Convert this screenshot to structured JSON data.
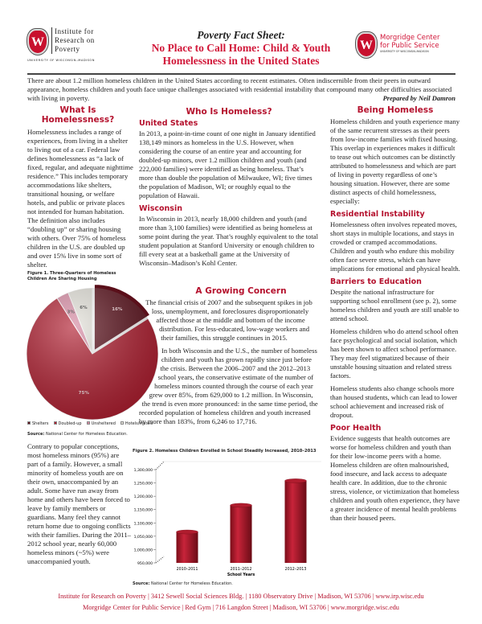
{
  "header": {
    "irp_logo": {
      "line1": "Institute for",
      "line2": "Research on",
      "line3": "Poverty",
      "sub": "University of Wisconsin–Madison"
    },
    "kicker": "Poverty Fact Sheet:",
    "title_line1": "No Place to Call Home: Child & Youth",
    "title_line2": "Homelessness in the United States",
    "morgridge_logo": {
      "line1": "Morgridge Center",
      "line2": "for Public Service",
      "sub": "University of Wisconsin–Madison"
    }
  },
  "intro": "There are about 1.2 million homeless children in the United States according to recent estimates. Often indiscernible from their peers in outward appearance, homeless children and youth face unique challenges associated with residential instability that compound many other difficulties associated with living in poverty.",
  "byline": "Prepared by Neil Damron",
  "left": {
    "heading": "What Is Homelessness?",
    "p1": "Homelessness includes a range of experiences, from living in a shelter to living out of a car. Federal law defines homelessness as “a lack of fixed, regular, and adequate nighttime residence.” This includes temporary accommodations like shelters, transitional housing, or welfare hotels, and public or private places not intended for human habitation. The definition also includes “doubling up” or sharing housing with others. Over 75% of homeless children in the U.S. are doubled up and over 15% live in some sort of shelter.",
    "fig1_caption": "Figure 1. Three-Quarters of Homeless Children Are Sharing Housing",
    "fig1_source_label": "Source:",
    "fig1_source": "National Center for Homeless Education.",
    "p2": "Contrary to popular conceptions, most homeless minors (95%) are part of a family. However, a small minority of homeless youth are on their own, unaccompanied by an adult. Some have run away from home and others have been forced to leave by family members or guardians. Many feel they cannot return home due to ongoing conflicts with their families. During the 2011–2012 school year, nearly 60,000 homeless minors (~5%) were unaccompanied youth."
  },
  "middle": {
    "heading": "Who Is Homeless?",
    "us_heading": "United States",
    "us_text": "In 2013, a point-in-time count of one night in January identified 138,149 minors as homeless in the U.S. However, when considering the course of an entire year and accounting for doubled-up minors, over 1.2 million children and youth (and 222,000 families) were identified as being homeless. That’s more than double the population of Milwaukee, WI; five times the population of Madison, WI; or roughly equal to the population of Hawaii.",
    "wi_heading": "Wisconsin",
    "wi_text": "In Wisconsin in 2013, nearly 18,000 children and youth (and more than 3,100 families) were identified as being homeless at some point during the year. That’s roughly equivalent to the total student population at Stanford University or enough children to fill every seat at a basketball game at the University of Wisconsin–Madison’s Kohl Center.",
    "concern_heading": "A Growing Concern",
    "concern_p1": "The financial crisis of 2007 and the subsequent spikes in job loss, unemployment, and foreclosures disproportionately affected those at the middle and bottom of the income distribution. For less-educated, low-wage workers and their families, this struggle continues in 2015.",
    "concern_p2": "In both Wisconsin and the U.S., the number of homeless children and youth has grown rapidly since just before the crisis. Between the 2006–2007 and the 2012–2013 school years, the conservative estimate of the number of homeless minors counted through the course of each year grew over 85%, from 629,000 to 1.2 million. In Wisconsin, the trend is even more pronounced: in the same time period, the recorded population of homeless children and youth increased by more than 183%, from 6,246 to 17,716.",
    "fig2_caption": "Figure 2. Homeless Children Enrolled in School Steadily Increased, 2010–2013",
    "fig2_source_label": "Source:",
    "fig2_source": "National Center for Homeless Education."
  },
  "right": {
    "heading": "Being Homeless",
    "intro": "Homeless children and youth experience many of the same recurrent stresses as their peers from low-income families with fixed housing. This overlap in experiences makes it difficult to tease out which outcomes can be distinctly attributed to homelessness and which are part of living in poverty regardless of one’s housing situation. However, there are some distinct aspects of child homelessness, especially:",
    "res_heading": "Residential Instability",
    "res_text": "Homelessness often involves repeated moves, short stays in multiple locations, and stays in crowded or cramped accommodations. Children and youth who endure this mobility often face severe stress, which can have implications for emotional and physical health.",
    "edu_heading": "Barriers to Education",
    "edu_p1": "Despite the national infrastructure for supporting school enrollment (see p. 2), some homeless children and youth are still unable to attend school.",
    "edu_p2": "Homeless children who do attend school often face psychological and social isolation, which has been shown to affect school performance. They may feel stigmatized because of their unstable housing situation and related stress factors.",
    "edu_p3": "Homeless students also change schools more than housed students, which can lead to lower school achievement and increased risk of dropout.",
    "health_heading": "Poor Health",
    "health_text": "Evidence suggests that health outcomes are worse for homeless children and youth than for their low-income peers with a home. Homeless children are often malnourished, food insecure, and lack access to adequate health care. In addition, due to the chronic stress, violence, or victimization that homeless children and youth often experience, they have a greater incidence of mental health problems than their housed peers."
  },
  "footer": {
    "line1": "Institute for Research on Poverty | 3412 Sewell Social Sciences Bldg. | 1180 Observatory Drive | Madison, WI 53706 | www.irp.wisc.edu",
    "line2": "Morgridge Center for Public Service | Red Gym | 716 Langdon Street | Madison, WI 53706 | www.morgridge.wisc.edu"
  },
  "colors": {
    "accent": "#b5122e",
    "dark_red": "#5a0f1a",
    "red": "#b01c2e",
    "pink": "#d88aa3",
    "light": "#e4e2da"
  },
  "chart_data": [
    {
      "type": "pie",
      "title": "Figure 1. Three-Quarters of Homeless Children Are Sharing Housing",
      "categories": [
        "Shelters",
        "Doubled-up",
        "Unsheltered",
        "Hotels/motels"
      ],
      "values": [
        16,
        75,
        3,
        6
      ],
      "labels": [
        "16%",
        "75%",
        "3%",
        "6%"
      ],
      "colors": [
        "#5a0f1a",
        "#b01c2e",
        "#d88aa3",
        "#e4e2da"
      ],
      "legend": "bottom"
    },
    {
      "type": "bar",
      "title": "Figure 2. Homeless Children Enrolled in School Steadily Increased, 2010–2013",
      "categories": [
        "2010–2011",
        "2011–2012",
        "2012–2013"
      ],
      "values": [
        1066000,
        1166000,
        1258000
      ],
      "xlabel": "School Years",
      "ylabel": "",
      "ylim": [
        950000,
        1300000
      ],
      "yticks": [
        "950,000",
        "1,000,000",
        "1,050,000",
        "1,100,000",
        "1,150,000",
        "1,200,000",
        "1,250,000",
        "1,300,000"
      ],
      "grid": false
    }
  ]
}
